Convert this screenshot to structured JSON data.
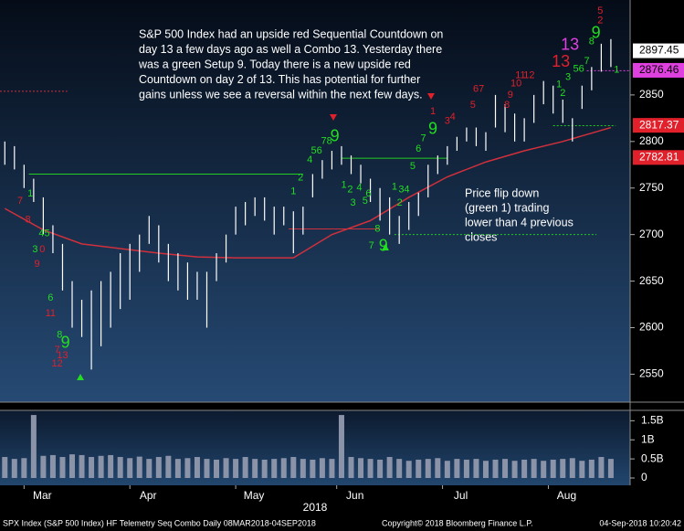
{
  "chart_data": {
    "type": "bar-ohlc",
    "commentary": [
      "S&P 500 Index had an upside red Sequential Countdown on",
      "day 13 a few days ago as well a Combo 13.  Yesterday there",
      "was a green Setup 9.  Today there is a new upside red",
      "Countdown on day 2 of 13.  This has potential for further",
      "gains unless we see a reversal within the next few days."
    ],
    "note": [
      "Price flip down",
      "(green 1) trading",
      "lower than 4 previous",
      "closes"
    ],
    "footer_left": "SPX Index (S&P 500 Index) HF Telemetry Seq Combo  Daily 08MAR2018-04SEP2018",
    "footer_mid": "Copyright© 2018 Bloomberg Finance L.P.",
    "footer_right": "04-Sep-2018 10:20:42",
    "year": "2018",
    "xlim": [
      -1,
      130
    ],
    "xticks": [
      {
        "value": 4,
        "label": "Mar"
      },
      {
        "value": 26,
        "label": "Apr"
      },
      {
        "value": 48,
        "label": "May"
      },
      {
        "value": 69,
        "label": "Jun"
      },
      {
        "value": 91,
        "label": "Jul"
      },
      {
        "value": 113,
        "label": "Aug"
      }
    ],
    "ylim": [
      2520,
      2952
    ],
    "yticks": [
      2550,
      2600,
      2650,
      2700,
      2750,
      2800,
      2850
    ],
    "bars": {
      "color": "#ffffff",
      "x": [
        0,
        2,
        4,
        6,
        8,
        10,
        12,
        14,
        16,
        18,
        20,
        22,
        24,
        26,
        28,
        30,
        32,
        34,
        36,
        38,
        40,
        42,
        44,
        46,
        48,
        50,
        52,
        54,
        56,
        58,
        60,
        62,
        64,
        66,
        68,
        70,
        72,
        74,
        76,
        78,
        80,
        82,
        84,
        86,
        88,
        90,
        92,
        94,
        96,
        98,
        100,
        102,
        104,
        106,
        108,
        110,
        112,
        114,
        116,
        118,
        120,
        122,
        124,
        126
      ],
      "high": [
        2800,
        2795,
        2775,
        2760,
        2740,
        2710,
        2690,
        2650,
        2630,
        2640,
        2650,
        2660,
        2680,
        2690,
        2700,
        2720,
        2710,
        2690,
        2680,
        2670,
        2660,
        2660,
        2680,
        2700,
        2730,
        2735,
        2740,
        2740,
        2730,
        2730,
        2725,
        2730,
        2765,
        2780,
        2790,
        2795,
        2785,
        2775,
        2760,
        2750,
        2740,
        2720,
        2735,
        2745,
        2775,
        2785,
        2795,
        2805,
        2815,
        2815,
        2810,
        2850,
        2840,
        2830,
        2825,
        2850,
        2865,
        2860,
        2845,
        2825,
        2860,
        2880,
        2905,
        2910
      ],
      "low": [
        2775,
        2770,
        2750,
        2735,
        2700,
        2680,
        2640,
        2600,
        2590,
        2555,
        2580,
        2600,
        2620,
        2630,
        2660,
        2690,
        2670,
        2650,
        2640,
        2630,
        2630,
        2600,
        2650,
        2670,
        2700,
        2710,
        2720,
        2715,
        2700,
        2710,
        2680,
        2700,
        2740,
        2760,
        2770,
        2775,
        2765,
        2755,
        2735,
        2715,
        2700,
        2690,
        2705,
        2720,
        2740,
        2765,
        2775,
        2790,
        2800,
        2795,
        2790,
        2815,
        2810,
        2800,
        2800,
        2820,
        2840,
        2830,
        2820,
        2800,
        2835,
        2855,
        2875,
        2880
      ]
    },
    "ma": {
      "color": "#d0303c",
      "x": [
        0,
        8,
        16,
        24,
        32,
        40,
        48,
        60,
        68,
        76,
        84,
        92,
        100,
        108,
        116,
        126
      ],
      "values": [
        2728,
        2705,
        2690,
        2685,
        2680,
        2676,
        2675,
        2675,
        2700,
        2715,
        2740,
        2762,
        2778,
        2790,
        2800,
        2815
      ]
    },
    "levels": [
      {
        "value": 2765,
        "x0": 5,
        "x1": 62,
        "color": "#22cc22",
        "dash": false
      },
      {
        "value": 2782,
        "x0": 70,
        "x1": 92,
        "color": "#22cc22",
        "dash": false
      },
      {
        "value": 2700,
        "x0": 81,
        "x1": 123,
        "color": "#22cc22",
        "dash": true
      },
      {
        "value": 2817,
        "x0": 114,
        "x1": 127,
        "color": "#22cc22",
        "dash": true
      },
      {
        "value": 2706,
        "x0": 59,
        "x1": 78,
        "color": "#d0303c",
        "dash": false
      },
      {
        "value": 2854,
        "x0": -1,
        "x1": 13,
        "color": "#d0303c",
        "dash": true
      },
      {
        "value": 2876,
        "x0": 121,
        "x1": 130,
        "color": "#e040e0",
        "dash": true
      }
    ],
    "price_labels": [
      {
        "value": 2897.45,
        "bg": "#ffffff",
        "fg": "#000000"
      },
      {
        "value": 2876.46,
        "bg": "#e040e0",
        "fg": "#000000"
      },
      {
        "value": 2817.37,
        "bg": "#e0202a",
        "fg": "#ffffff"
      },
      {
        "value": 2782.81,
        "bg": "#e0202a",
        "fg": "#ffffff"
      }
    ],
    "annotations": [
      {
        "text": "7",
        "x": 3.2,
        "y": 2736,
        "color": "#e0202a"
      },
      {
        "text": "1",
        "x": 5.3,
        "y": 2744,
        "color": "#22dd22"
      },
      {
        "text": "8",
        "x": 4.8,
        "y": 2716,
        "color": "#e0202a"
      },
      {
        "text": "45",
        "x": 8.2,
        "y": 2701,
        "color": "#22dd22"
      },
      {
        "text": "3",
        "x": 6.3,
        "y": 2684,
        "color": "#22dd22"
      },
      {
        "text": "0",
        "x": 7.8,
        "y": 2684,
        "color": "#e0202a"
      },
      {
        "text": "9",
        "x": 6.7,
        "y": 2668,
        "color": "#e0202a"
      },
      {
        "text": "6",
        "x": 9.5,
        "y": 2632,
        "color": "#22dd22"
      },
      {
        "text": "11",
        "x": 9.5,
        "y": 2615,
        "color": "#e0202a"
      },
      {
        "text": "8",
        "x": 11.4,
        "y": 2592,
        "color": "#22dd22"
      },
      {
        "text": "9",
        "x": 12.6,
        "y": 2583,
        "color": "#22dd22",
        "big": true
      },
      {
        "text": "7",
        "x": 10.9,
        "y": 2576,
        "color": "#e0202a"
      },
      {
        "text": "13",
        "x": 12.0,
        "y": 2570,
        "color": "#e0202a"
      },
      {
        "text": "12",
        "x": 10.9,
        "y": 2561,
        "color": "#e0202a"
      },
      {
        "text": "1",
        "x": 60,
        "y": 2746,
        "color": "#22dd22"
      },
      {
        "text": "2",
        "x": 61.5,
        "y": 2761,
        "color": "#22dd22"
      },
      {
        "text": "4",
        "x": 63.4,
        "y": 2780,
        "color": "#22dd22"
      },
      {
        "text": "56",
        "x": 64.8,
        "y": 2790,
        "color": "#22dd22"
      },
      {
        "text": "78",
        "x": 66.9,
        "y": 2800,
        "color": "#22dd22"
      },
      {
        "text": "9",
        "x": 68.6,
        "y": 2805,
        "color": "#22dd22",
        "big": true
      },
      {
        "text": "1",
        "x": 70.5,
        "y": 2753,
        "color": "#22dd22"
      },
      {
        "text": "2",
        "x": 71.8,
        "y": 2748,
        "color": "#22dd22"
      },
      {
        "text": "3",
        "x": 72.4,
        "y": 2734,
        "color": "#22dd22"
      },
      {
        "text": "4",
        "x": 73.7,
        "y": 2750,
        "color": "#22dd22"
      },
      {
        "text": "5",
        "x": 74.9,
        "y": 2736,
        "color": "#22dd22"
      },
      {
        "text": "6",
        "x": 75.6,
        "y": 2744,
        "color": "#22dd22"
      },
      {
        "text": "8",
        "x": 77.5,
        "y": 2706,
        "color": "#22dd22"
      },
      {
        "text": "7",
        "x": 76.2,
        "y": 2688,
        "color": "#22dd22"
      },
      {
        "text": "9",
        "x": 78.7,
        "y": 2687,
        "color": "#22dd22",
        "big": true
      },
      {
        "text": "1",
        "x": 81,
        "y": 2751,
        "color": "#22dd22"
      },
      {
        "text": "34",
        "x": 83,
        "y": 2748,
        "color": "#22dd22"
      },
      {
        "text": "2",
        "x": 82.1,
        "y": 2734,
        "color": "#22dd22"
      },
      {
        "text": "5",
        "x": 84.8,
        "y": 2773,
        "color": "#22dd22"
      },
      {
        "text": "6",
        "x": 86,
        "y": 2792,
        "color": "#22dd22"
      },
      {
        "text": "7",
        "x": 87,
        "y": 2803,
        "color": "#22dd22"
      },
      {
        "text": "9",
        "x": 89,
        "y": 2813,
        "color": "#22dd22",
        "big": true
      },
      {
        "text": "1",
        "x": 89,
        "y": 2832,
        "color": "#e0202a"
      },
      {
        "text": "3",
        "x": 92,
        "y": 2822,
        "color": "#e0202a"
      },
      {
        "text": "4",
        "x": 93.1,
        "y": 2826,
        "color": "#e0202a"
      },
      {
        "text": "5",
        "x": 97.3,
        "y": 2839,
        "color": "#e0202a"
      },
      {
        "text": "67",
        "x": 98.5,
        "y": 2856,
        "color": "#e0202a"
      },
      {
        "text": "8",
        "x": 104.4,
        "y": 2839,
        "color": "#e0202a"
      },
      {
        "text": "9",
        "x": 105.1,
        "y": 2850,
        "color": "#e0202a"
      },
      {
        "text": "10",
        "x": 106.3,
        "y": 2862,
        "color": "#e0202a"
      },
      {
        "text": "11",
        "x": 107.2,
        "y": 2871,
        "color": "#e0202a"
      },
      {
        "text": "12",
        "x": 109,
        "y": 2871,
        "color": "#e0202a"
      },
      {
        "text": "1",
        "x": 115.2,
        "y": 2861,
        "color": "#22dd22"
      },
      {
        "text": "2",
        "x": 116,
        "y": 2852,
        "color": "#22dd22"
      },
      {
        "text": "13",
        "x": 117.5,
        "y": 2903,
        "color": "#e040e0",
        "big": true
      },
      {
        "text": "13",
        "x": 115.6,
        "y": 2885,
        "color": "#e0202a",
        "big": true
      },
      {
        "text": "3",
        "x": 117.1,
        "y": 2869,
        "color": "#22dd22"
      },
      {
        "text": "56",
        "x": 119.3,
        "y": 2878,
        "color": "#22dd22"
      },
      {
        "text": "7",
        "x": 121,
        "y": 2886,
        "color": "#22dd22"
      },
      {
        "text": "8",
        "x": 122,
        "y": 2907,
        "color": "#22dd22"
      },
      {
        "text": "9",
        "x": 122.9,
        "y": 2916,
        "color": "#22dd22",
        "big": true
      },
      {
        "text": "1",
        "x": 127.2,
        "y": 2877,
        "color": "#22dd22"
      },
      {
        "text": "5",
        "x": 123.8,
        "y": 2940,
        "color": "#e0202a"
      },
      {
        "text": "2",
        "x": 123.8,
        "y": 2930,
        "color": "#e0202a"
      }
    ],
    "volume": {
      "color": "#8a93a8",
      "ylim": [
        0,
        1.7
      ],
      "yticks": [
        {
          "value": 0,
          "label": "0"
        },
        {
          "value": 0.5,
          "label": "0.5B"
        },
        {
          "value": 1,
          "label": "1B"
        },
        {
          "value": 1.5,
          "label": "1.5B"
        }
      ],
      "values": [
        0.55,
        0.5,
        0.52,
        1.65,
        0.58,
        0.6,
        0.55,
        0.62,
        0.6,
        0.55,
        0.58,
        0.6,
        0.55,
        0.52,
        0.56,
        0.5,
        0.55,
        0.58,
        0.5,
        0.52,
        0.55,
        0.5,
        0.48,
        0.52,
        0.5,
        0.55,
        0.5,
        0.48,
        0.5,
        0.52,
        0.55,
        0.5,
        0.48,
        0.52,
        0.5,
        1.65,
        0.55,
        0.52,
        0.5,
        0.48,
        0.55,
        0.5,
        0.45,
        0.48,
        0.5,
        0.52,
        0.45,
        0.5,
        0.48,
        0.5,
        0.45,
        0.48,
        0.5,
        0.45,
        0.48,
        0.5,
        0.45,
        0.48,
        0.5,
        0.52,
        0.45,
        0.48,
        0.55,
        0.5
      ]
    }
  }
}
